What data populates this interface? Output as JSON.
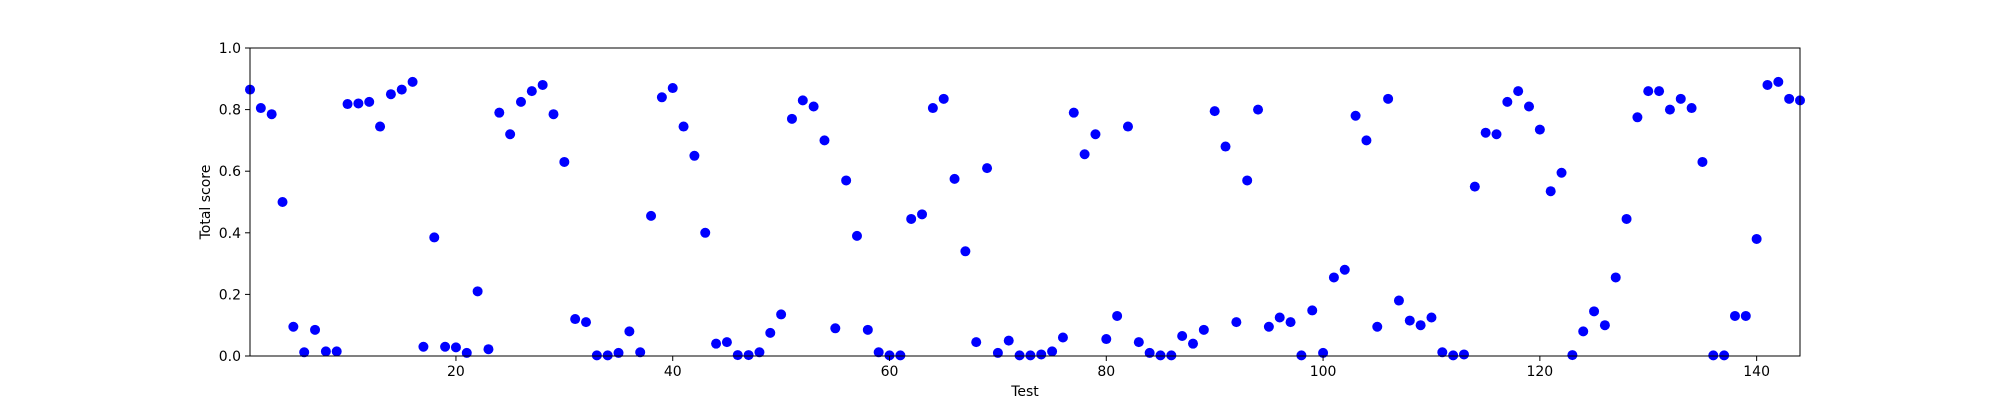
{
  "chart_data": {
    "type": "scatter",
    "xlabel": "Test",
    "ylabel": "Total score",
    "xlim": [
      1,
      144
    ],
    "ylim": [
      0.0,
      1.0
    ],
    "x_ticks": [
      20,
      40,
      60,
      80,
      100,
      120,
      140
    ],
    "y_ticks": [
      "0.0",
      "0.2",
      "0.4",
      "0.6",
      "0.8",
      "1.0"
    ],
    "marker_color": "#0000ff",
    "grid": false,
    "x": [
      1,
      2,
      3,
      4,
      5,
      6,
      7,
      8,
      9,
      10,
      11,
      12,
      13,
      14,
      15,
      16,
      17,
      18,
      19,
      20,
      21,
      22,
      23,
      24,
      25,
      26,
      27,
      28,
      29,
      30,
      31,
      32,
      33,
      34,
      35,
      36,
      37,
      38,
      39,
      40,
      41,
      42,
      43,
      44,
      45,
      46,
      47,
      48,
      49,
      50,
      51,
      52,
      53,
      54,
      55,
      56,
      57,
      58,
      59,
      60,
      61,
      62,
      63,
      64,
      65,
      66,
      67,
      68,
      69,
      70,
      71,
      72,
      73,
      74,
      75,
      76,
      77,
      78,
      79,
      80,
      81,
      82,
      83,
      84,
      85,
      86,
      87,
      88,
      89,
      90,
      91,
      92,
      93,
      94,
      95,
      96,
      97,
      98,
      99,
      100,
      101,
      102,
      103,
      104,
      105,
      106,
      107,
      108,
      109,
      110,
      111,
      112,
      113,
      114,
      115,
      116,
      117,
      118,
      119,
      120,
      121,
      122,
      123,
      124,
      125,
      126,
      127,
      128,
      129,
      130,
      131,
      132,
      133,
      134,
      135,
      136,
      137,
      138,
      139,
      140,
      141,
      142,
      143,
      144
    ],
    "y": [
      0.865,
      0.805,
      0.785,
      0.5,
      0.095,
      0.012,
      0.085,
      0.015,
      0.015,
      0.818,
      0.82,
      0.825,
      0.745,
      0.85,
      0.865,
      0.89,
      0.03,
      0.385,
      0.03,
      0.028,
      0.01,
      0.21,
      0.022,
      0.79,
      0.72,
      0.825,
      0.86,
      0.88,
      0.785,
      0.63,
      0.12,
      0.11,
      0.002,
      0.002,
      0.01,
      0.08,
      0.012,
      0.455,
      0.84,
      0.87,
      0.745,
      0.65,
      0.4,
      0.04,
      0.045,
      0.003,
      0.003,
      0.012,
      0.075,
      0.135,
      0.77,
      0.83,
      0.81,
      0.7,
      0.09,
      0.57,
      0.39,
      0.085,
      0.012,
      0.002,
      0.002,
      0.445,
      0.46,
      0.805,
      0.835,
      0.575,
      0.34,
      0.045,
      0.61,
      0.01,
      0.05,
      0.002,
      0.002,
      0.005,
      0.015,
      0.06,
      0.79,
      0.655,
      0.72,
      0.055,
      0.13,
      0.745,
      0.045,
      0.01,
      0.002,
      0.002,
      0.065,
      0.04,
      0.085,
      0.795,
      0.68,
      0.11,
      0.57,
      0.8,
      0.095,
      0.125,
      0.11,
      0.002,
      0.148,
      0.01,
      0.255,
      0.28,
      0.78,
      0.7,
      0.095,
      0.835,
      0.18,
      0.115,
      0.1,
      0.125,
      0.012,
      0.002,
      0.005,
      0.55,
      0.725,
      0.72,
      0.825,
      0.86,
      0.81,
      0.735,
      0.535,
      0.595,
      0.003,
      0.08,
      0.145,
      0.1,
      0.255,
      0.445,
      0.775,
      0.86,
      0.86,
      0.8,
      0.835,
      0.805,
      0.63,
      0.002,
      0.002,
      0.13,
      0.13,
      0.38,
      0.88,
      0.89,
      0.835,
      0.83
    ]
  }
}
